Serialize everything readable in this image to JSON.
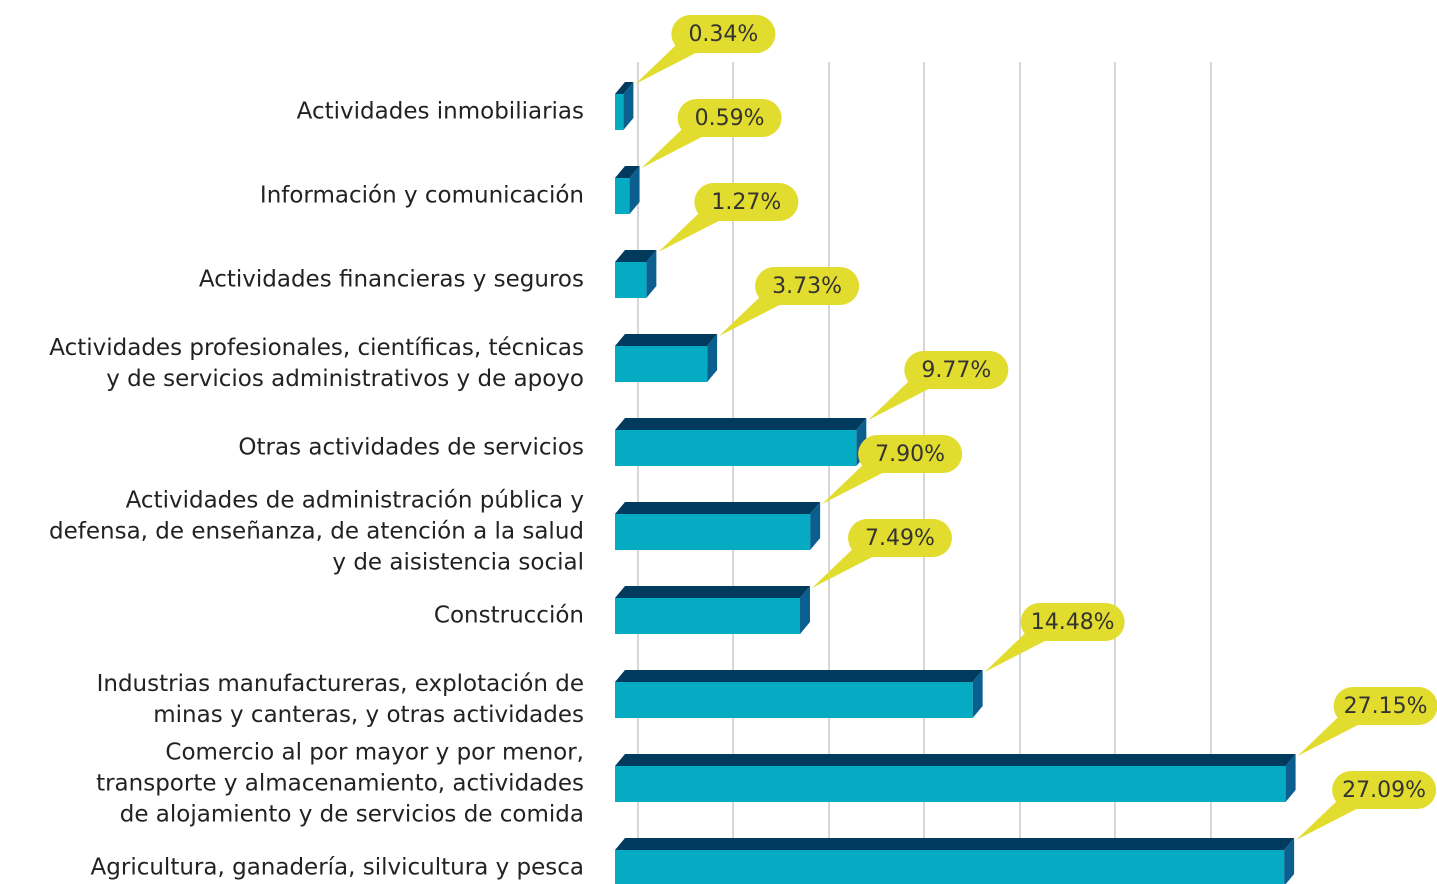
{
  "chart_data": {
    "type": "barh",
    "categories": [
      "Actividades inmobiliarias",
      "Información y comunicación",
      "Actividades financieras y seguros",
      "Actividades profesionales, científicas, técnicas\ny de servicios administrativos y de apoyo",
      "Otras actividades de servicios",
      "Actividades de administración pública y\ndefensa, de enseñanza, de atención a la salud\ny de aisistencia social",
      "Construcción",
      "Industrias manufactureras, explotación de\nminas y canteras, y otras actividades",
      "Comercio al por mayor y por menor,\ntransporte y almacenamiento, actividades\nde alojamiento y de servicios de comida",
      "Agricultura, ganadería, silvicultura y pesca"
    ],
    "values": [
      0.34,
      0.59,
      1.27,
      3.73,
      9.77,
      7.9,
      7.49,
      14.48,
      27.15,
      27.09
    ],
    "value_labels": [
      "0.34%",
      "0.59%",
      "1.27%",
      "3.73%",
      "9.77%",
      "7.90%",
      "7.49%",
      "14.48%",
      "27.15%",
      "27.09%"
    ],
    "color": "#05abc2",
    "xlim": [
      0,
      30
    ]
  }
}
